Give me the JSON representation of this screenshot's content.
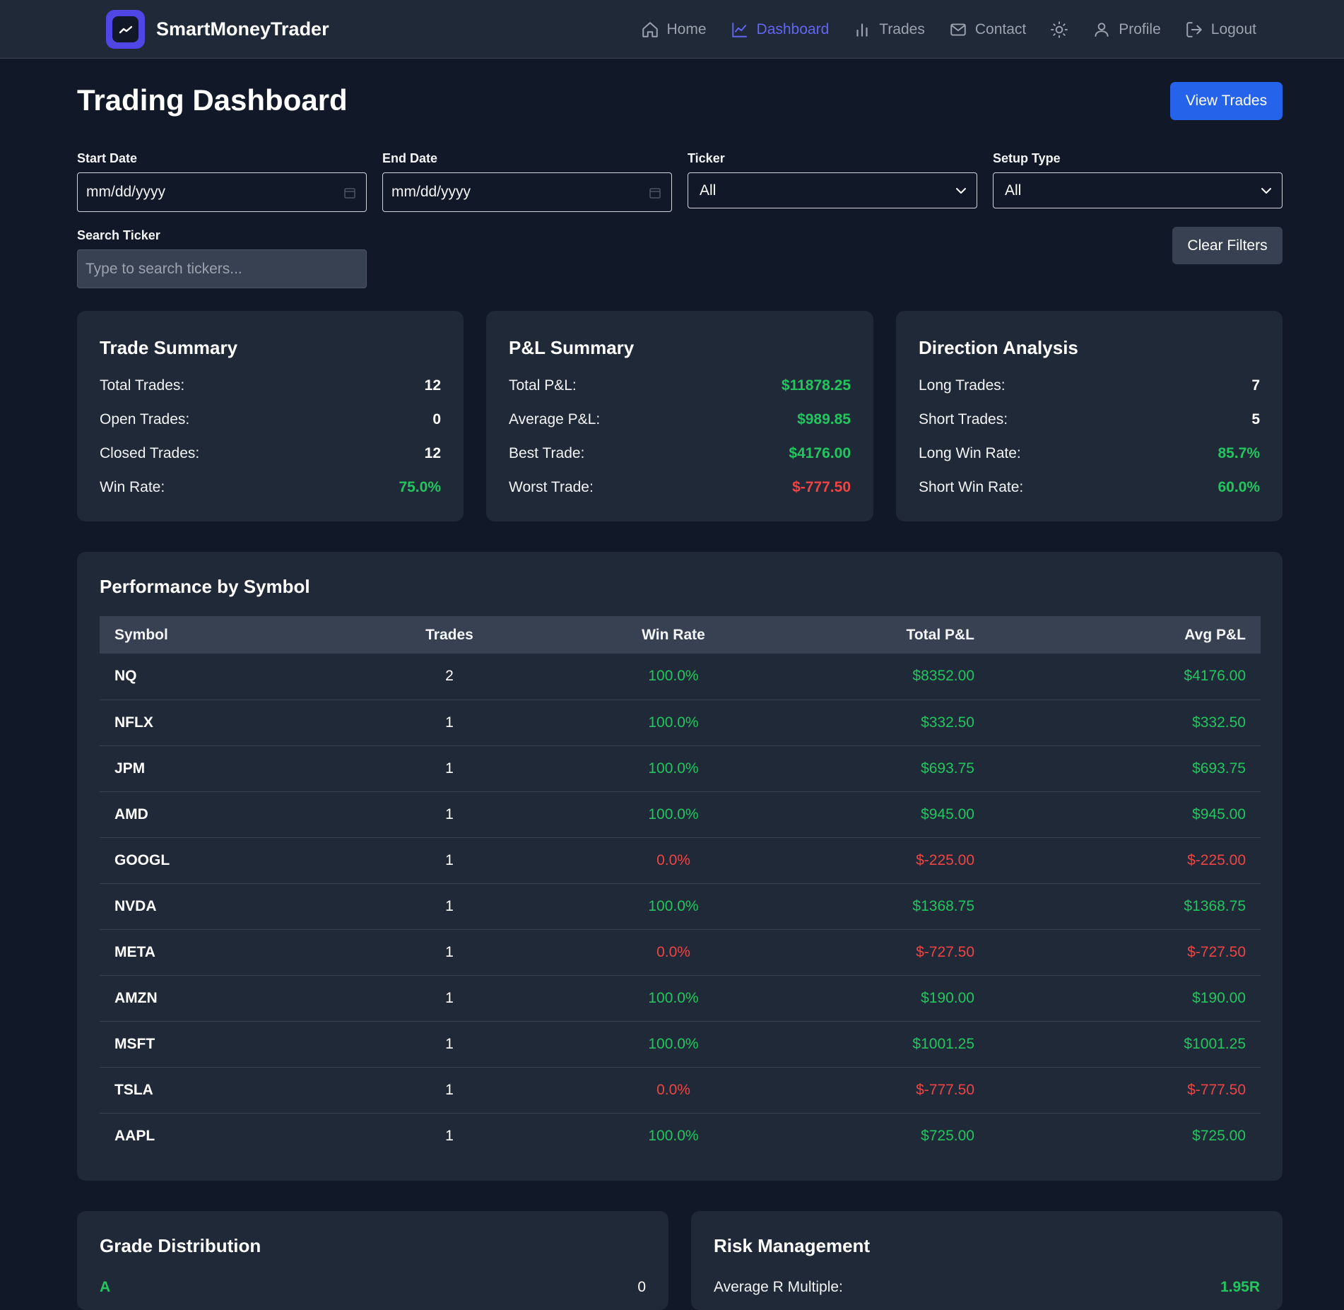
{
  "brand": {
    "name": "SmartMoneyTrader"
  },
  "nav": {
    "home": "Home",
    "dashboard": "Dashboard",
    "trades": "Trades",
    "contact": "Contact",
    "profile": "Profile",
    "logout": "Logout"
  },
  "page": {
    "title": "Trading Dashboard",
    "view_trades": "View Trades"
  },
  "filters": {
    "start_date_label": "Start Date",
    "start_date_value": "mm/dd/yyyy",
    "end_date_label": "End Date",
    "end_date_value": "mm/dd/yyyy",
    "ticker_label": "Ticker",
    "ticker_value": "All",
    "setup_label": "Setup Type",
    "setup_value": "All",
    "search_label": "Search Ticker",
    "search_placeholder": "Type to search tickers...",
    "clear": "Clear Filters"
  },
  "trade_summary": {
    "title": "Trade Summary",
    "rows": [
      {
        "label": "Total Trades:",
        "value": "12"
      },
      {
        "label": "Open Trades:",
        "value": "0"
      },
      {
        "label": "Closed Trades:",
        "value": "12"
      },
      {
        "label": "Win Rate:",
        "value": "75.0%"
      }
    ]
  },
  "pnl_summary": {
    "title": "P&L Summary",
    "rows": [
      {
        "label": "Total P&L:",
        "value": "$11878.25"
      },
      {
        "label": "Average P&L:",
        "value": "$989.85"
      },
      {
        "label": "Best Trade:",
        "value": "$4176.00"
      },
      {
        "label": "Worst Trade:",
        "value": "$-777.50"
      }
    ]
  },
  "direction": {
    "title": "Direction Analysis",
    "rows": [
      {
        "label": "Long Trades:",
        "value": "7"
      },
      {
        "label": "Short Trades:",
        "value": "5"
      },
      {
        "label": "Long Win Rate:",
        "value": "85.7%"
      },
      {
        "label": "Short Win Rate:",
        "value": "60.0%"
      }
    ]
  },
  "performance": {
    "title": "Performance by Symbol",
    "headers": [
      "Symbol",
      "Trades",
      "Win Rate",
      "Total P&L",
      "Avg P&L"
    ],
    "rows": [
      {
        "symbol": "NQ",
        "trades": "2",
        "win_rate": "100.0%",
        "total": "$8352.00",
        "avg": "$4176.00",
        "positive": true
      },
      {
        "symbol": "NFLX",
        "trades": "1",
        "win_rate": "100.0%",
        "total": "$332.50",
        "avg": "$332.50",
        "positive": true
      },
      {
        "symbol": "JPM",
        "trades": "1",
        "win_rate": "100.0%",
        "total": "$693.75",
        "avg": "$693.75",
        "positive": true
      },
      {
        "symbol": "AMD",
        "trades": "1",
        "win_rate": "100.0%",
        "total": "$945.00",
        "avg": "$945.00",
        "positive": true
      },
      {
        "symbol": "GOOGL",
        "trades": "1",
        "win_rate": "0.0%",
        "total": "$-225.00",
        "avg": "$-225.00",
        "positive": false
      },
      {
        "symbol": "NVDA",
        "trades": "1",
        "win_rate": "100.0%",
        "total": "$1368.75",
        "avg": "$1368.75",
        "positive": true
      },
      {
        "symbol": "META",
        "trades": "1",
        "win_rate": "0.0%",
        "total": "$-727.50",
        "avg": "$-727.50",
        "positive": false
      },
      {
        "symbol": "AMZN",
        "trades": "1",
        "win_rate": "100.0%",
        "total": "$190.00",
        "avg": "$190.00",
        "positive": true
      },
      {
        "symbol": "MSFT",
        "trades": "1",
        "win_rate": "100.0%",
        "total": "$1001.25",
        "avg": "$1001.25",
        "positive": true
      },
      {
        "symbol": "TSLA",
        "trades": "1",
        "win_rate": "0.0%",
        "total": "$-777.50",
        "avg": "$-777.50",
        "positive": false
      },
      {
        "symbol": "AAPL",
        "trades": "1",
        "win_rate": "100.0%",
        "total": "$725.00",
        "avg": "$725.00",
        "positive": true
      }
    ]
  },
  "grade": {
    "title": "Grade Distribution",
    "first_row": {
      "label": "A",
      "value": "0"
    }
  },
  "risk": {
    "title": "Risk Management",
    "first_row": {
      "label": "Average R Multiple:",
      "value": "1.95R"
    }
  },
  "colors": {
    "positive": "#22c55e",
    "negative": "#ef4444",
    "accent": "#6366f1",
    "primary": "#2563eb"
  }
}
